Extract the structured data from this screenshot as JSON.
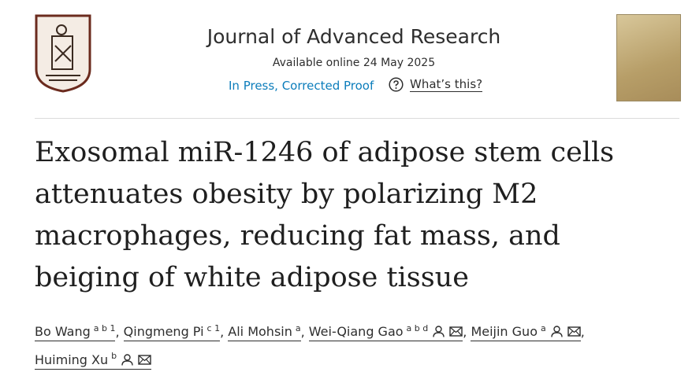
{
  "header": {
    "journal": "Journal of Advanced Research",
    "available": "Available online 24 May 2025",
    "status": "In Press, Corrected Proof",
    "help": "What’s this?"
  },
  "title": [
    "Exosomal miR-1246 of adipose stem cells",
    "attenuates obesity by polarizing M2",
    "macrophages, reducing fat mass, and",
    "beiging of white adipose tissue"
  ],
  "authors_separator": ",",
  "authors": [
    {
      "name": "Bo Wang",
      "affiliations": "a b 1",
      "contact": false
    },
    {
      "name": "Qingmeng Pi",
      "affiliations": "c 1",
      "contact": false
    },
    {
      "name": "Ali Mohsin",
      "affiliations": "a",
      "contact": false
    },
    {
      "name": "Wei-Qiang Gao",
      "affiliations": "a b d",
      "contact": true
    },
    {
      "name": "Meijin Guo",
      "affiliations": "a",
      "contact": true
    },
    {
      "name": "Huiming Xu",
      "affiliations": "b",
      "contact": true
    }
  ]
}
